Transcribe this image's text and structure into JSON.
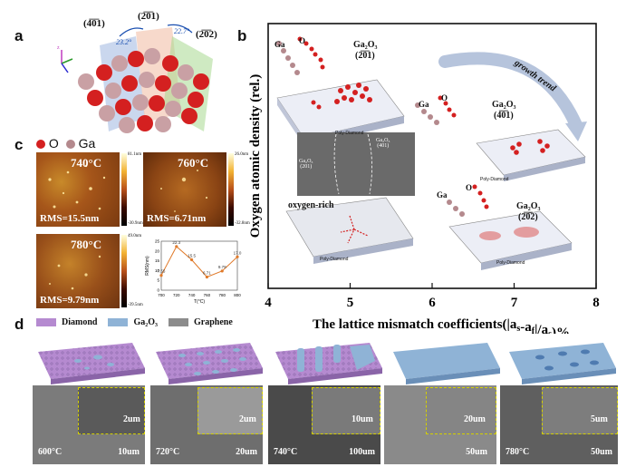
{
  "panel_labels": {
    "a": "a",
    "b": "b",
    "c": "c",
    "d": "d"
  },
  "legend_atoms": {
    "o": "O",
    "ga": "Ga"
  },
  "crystal": {
    "plane_401": "(4̅0̅1)",
    "plane_201": "(2̅0̅1)",
    "plane_202": "(2̅0̅2)",
    "angle_1": "23.2°",
    "angle_2": "22.7°",
    "axis_z": "z"
  },
  "afm": [
    {
      "temp": "740°C",
      "rms": "RMS=15.5nm",
      "scale_top": "81.1nm",
      "scale_bottom": "-30.9nm"
    },
    {
      "temp": "760°C",
      "rms": "RMS=6.71nm",
      "scale_top": "26.0nm",
      "scale_bottom": "-32.8nm"
    },
    {
      "temp": "780°C",
      "rms": "RMS=9.79nm",
      "scale_top": "49.0nm",
      "scale_bottom": "-39.5nm"
    }
  ],
  "chart_data": [
    {
      "type": "line",
      "title": "",
      "xlabel": "T(°C)",
      "ylabel": "RMS(nm)",
      "x": [
        700,
        720,
        740,
        760,
        780,
        800
      ],
      "x_ticks": [
        "700",
        "720",
        "740",
        "760",
        "780",
        "800"
      ],
      "y_ticks": [
        "0",
        "5",
        "10",
        "15",
        "20",
        "25"
      ],
      "ylim": [
        0,
        25
      ],
      "series": [
        {
          "name": "RMS",
          "values": [
            7.55,
            22.3,
            15.5,
            6.71,
            9.79,
            17.0
          ]
        }
      ],
      "point_labels": [
        "7.55",
        "22.3",
        "15.5",
        "6.71",
        "9.79",
        "17.0"
      ]
    },
    {
      "type": "scatter",
      "title": "",
      "xlabel": "The lattice mismatch coefficients(|as-af|/as)%",
      "xlabel_parts": {
        "pre": "The lattice mismatch coefficients(|a",
        "s1": "s",
        "mid": "-a",
        "f": "f",
        "slash": "|/a",
        "s2": "s",
        "post": ")%"
      },
      "ylabel": "Oxygen atomic density (rel.)",
      "x_ticks": [
        "4",
        "5",
        "6",
        "7",
        "8"
      ],
      "xlim": [
        4,
        8
      ],
      "annotation": "growth trend"
    }
  ],
  "panel_b": {
    "tl": {
      "ga": "Ga",
      "o": "O",
      "title": "Ga2O3",
      "plane": "(2̅0̅1)",
      "substrate": "Poly-Diamond"
    },
    "tr": {
      "ga": "Ga",
      "o": "O",
      "title": "Ga2O3",
      "plane": "(4̅0̅1)",
      "substrate": "Poly-Diamond"
    },
    "br": {
      "ga": "Ga",
      "o": "O",
      "title": "Ga2O3",
      "plane": "(2̅0̅2)",
      "substrate": "Poly-Diamond"
    },
    "sem_left": "Ga2O3\n(201)",
    "sem_left_a": "Ga₂O₃",
    "sem_left_b": "(201)",
    "sem_right_a": "Ga₂O₃",
    "sem_right_b": "(401)",
    "oxygen": "oxygen-rich",
    "bl_substrate": "Poly-Diamond",
    "title_tl_a": "Ga₂O₃",
    "title_tr_a": "Ga₂O₃",
    "title_br_a": "Ga₂O₃"
  },
  "legend_d": {
    "diamond": "Diamond",
    "ga2o3": "Ga₂O₃",
    "graphene": "Graphene"
  },
  "sem": [
    {
      "temp": "600°C",
      "scale": "10um",
      "inset_scale": "2um"
    },
    {
      "temp": "720°C",
      "scale": "20um",
      "inset_scale": "2um"
    },
    {
      "temp": "740°C",
      "scale": "100um",
      "inset_scale": "10um"
    },
    {
      "temp": "760°C",
      "scale": "50um",
      "inset_scale": "20um"
    },
    {
      "temp": "780°C",
      "scale": "50um",
      "inset_scale": "5um"
    }
  ],
  "colors": {
    "diamond": "#b58ad0",
    "ga2o3": "#8fb3d6",
    "graphene": "#8c8c8c",
    "ga_atom": "#b4898d",
    "o_atom": "#d42020"
  }
}
